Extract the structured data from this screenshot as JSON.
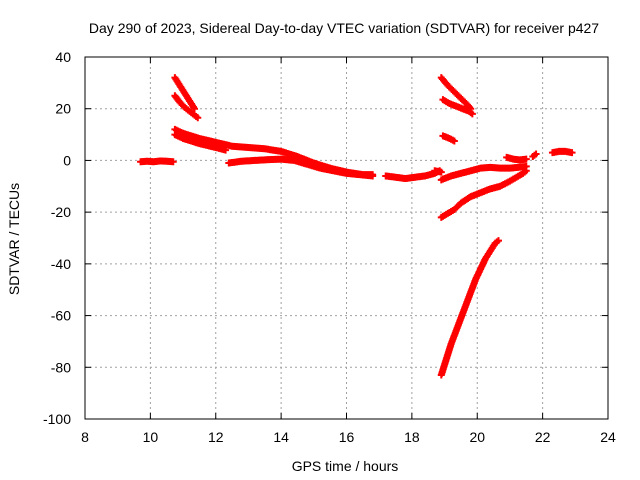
{
  "chart_data": {
    "type": "scatter",
    "title": "Day 290 of 2023, Sidereal Day-to-day VTEC variation (SDTVAR) for receiver p427",
    "xlabel": "GPS time / hours",
    "ylabel": "SDTVAR / TECUs",
    "xlim": [
      8,
      24
    ],
    "ylim": [
      -100,
      40
    ],
    "xticks": [
      8,
      10,
      12,
      14,
      16,
      18,
      20,
      22,
      24
    ],
    "yticks": [
      -100,
      -80,
      -60,
      -40,
      -20,
      0,
      20,
      40
    ],
    "grid": true,
    "marker_color": "#ff0000",
    "series": [
      {
        "name": "seg-a",
        "x": [
          9.7,
          9.9,
          10.1,
          10.3,
          10.5,
          10.7
        ],
        "y": [
          -0.5,
          -0.3,
          -0.5,
          -0.2,
          -0.3,
          -0.5
        ]
      },
      {
        "name": "seg-b",
        "x": [
          10.75,
          10.9,
          11.05,
          11.2,
          11.35
        ],
        "y": [
          32,
          29,
          26,
          23,
          20
        ]
      },
      {
        "name": "seg-c",
        "x": [
          10.75,
          10.9,
          11.05,
          11.2,
          11.35,
          11.45
        ],
        "y": [
          25,
          22.5,
          20.5,
          19,
          17.5,
          16.5
        ]
      },
      {
        "name": "seg-d",
        "x": [
          10.75,
          11.0,
          11.5,
          12.0,
          12.5,
          13.0,
          13.5,
          14.0,
          14.5,
          15.0,
          15.5,
          16.0,
          16.5,
          16.8
        ],
        "y": [
          12,
          10.5,
          8.5,
          7,
          5.5,
          5,
          4.5,
          3.5,
          1.5,
          -1,
          -3,
          -4.5,
          -5.5,
          -5.5
        ]
      },
      {
        "name": "seg-e",
        "x": [
          10.75,
          11.0,
          11.5,
          12.0,
          12.3
        ],
        "y": [
          10,
          8.5,
          6.5,
          5,
          4
        ]
      },
      {
        "name": "seg-f",
        "x": [
          12.4,
          12.8,
          13.2,
          13.6,
          14.0,
          14.4,
          14.8,
          15.2,
          15.6,
          16.0,
          16.4,
          16.8
        ],
        "y": [
          -1,
          -0.3,
          0,
          0.3,
          0.5,
          0,
          -1.5,
          -3,
          -4,
          -5,
          -5.5,
          -6
        ]
      },
      {
        "name": "seg-g",
        "x": [
          17.2,
          17.5,
          17.8,
          18.1,
          18.4,
          18.7,
          18.85
        ],
        "y": [
          -6,
          -6.5,
          -7,
          -6.5,
          -6,
          -5,
          -4
        ]
      },
      {
        "name": "seg-h",
        "x": [
          18.7,
          18.9
        ],
        "y": [
          -4,
          -4.5
        ]
      },
      {
        "name": "seg-i",
        "x": [
          18.9,
          19.1,
          19.3,
          19.5,
          19.7,
          19.8
        ],
        "y": [
          32,
          29,
          26.5,
          24,
          21.5,
          20
        ]
      },
      {
        "name": "seg-j",
        "x": [
          18.95,
          19.15,
          19.35,
          19.55,
          19.75,
          19.85
        ],
        "y": [
          23.5,
          22,
          21,
          20,
          19,
          18
        ]
      },
      {
        "name": "seg-k",
        "x": [
          18.95,
          19.15,
          19.3
        ],
        "y": [
          9.5,
          8.5,
          7.5
        ]
      },
      {
        "name": "seg-l",
        "x": [
          18.9,
          19.2,
          19.5,
          19.8,
          20.1,
          20.4,
          20.7,
          21.0,
          21.3,
          21.5
        ],
        "y": [
          -7.5,
          -6,
          -5,
          -4,
          -3,
          -2.7,
          -3,
          -3,
          -2.6,
          -2.3
        ]
      },
      {
        "name": "seg-m",
        "x": [
          18.9,
          19.1,
          19.3,
          19.5,
          19.8,
          20.1,
          20.4,
          20.7,
          21.0,
          21.2,
          21.4,
          21.5
        ],
        "y": [
          -22,
          -20.5,
          -19,
          -16.5,
          -14,
          -12.5,
          -11,
          -10,
          -8,
          -6.5,
          -5,
          -4
        ]
      },
      {
        "name": "seg-n",
        "x": [
          18.9,
          19.05,
          19.2,
          19.35,
          19.5,
          19.65,
          19.8,
          19.95,
          20.1,
          20.25,
          20.4,
          20.55,
          20.65
        ],
        "y": [
          -83,
          -77,
          -71,
          -66,
          -61,
          -56,
          -51,
          -46,
          -42,
          -38,
          -35,
          -32,
          -31
        ]
      },
      {
        "name": "seg-o",
        "x": [
          20.9,
          21.1,
          21.3,
          21.5
        ],
        "y": [
          1.2,
          0.5,
          0.2,
          0.5
        ]
      },
      {
        "name": "seg-p",
        "x": [
          21.7,
          21.8
        ],
        "y": [
          1.5,
          2.5
        ]
      },
      {
        "name": "seg-q",
        "x": [
          22.3,
          22.5,
          22.7,
          22.9
        ],
        "y": [
          3,
          3.5,
          3.5,
          3
        ]
      }
    ]
  }
}
